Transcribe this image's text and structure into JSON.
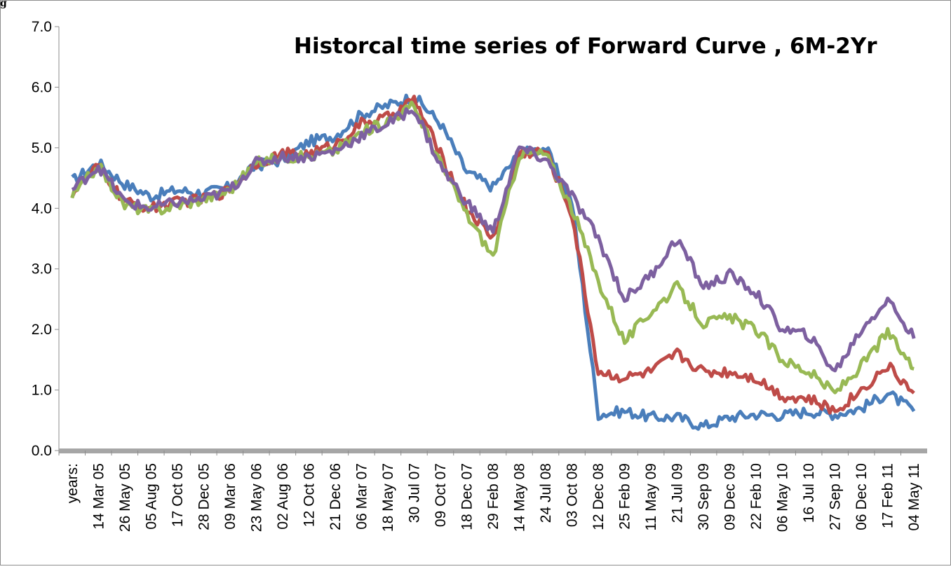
{
  "header_fragment": "g",
  "chart_data": {
    "type": "line",
    "title": "Historcal time series of Forward Curve , 6M-2Yr",
    "xlabel": "",
    "ylabel": "",
    "ylim": [
      0,
      7
    ],
    "yticks": [
      "0.0",
      "1.0",
      "2.0",
      "3.0",
      "4.0",
      "5.0",
      "6.0",
      "7.0"
    ],
    "grid": false,
    "legend": "none",
    "x_tick_labels": [
      "years:",
      "14 Mar 05",
      "26 May 05",
      "05 Aug 05",
      "17 Oct 05",
      "28 Dec 05",
      "09 Mar 06",
      "23 May 06",
      "02 Aug 06",
      "12 Oct 06",
      "21 Dec 06",
      "06 Mar 07",
      "18 May 07",
      "30 Jul 07",
      "09 Oct 07",
      "18 Dec 07",
      "29 Feb 08",
      "14 May 08",
      "24 Jul 08",
      "03 Oct 08",
      "12 Dec 08",
      "25 Feb 09",
      "11 May 09",
      "21 Jul 09",
      "30 Sep 09",
      "09 Dec 09",
      "22 Feb 10",
      "06 May 10",
      "16 Jul 10",
      "27 Sep 10",
      "06 Dec 10",
      "17 Feb 11",
      "04 May 11"
    ],
    "x": [
      "years:",
      "14 Mar 05",
      "26 May 05",
      "05 Aug 05",
      "17 Oct 05",
      "28 Dec 05",
      "09 Mar 06",
      "23 May 06",
      "02 Aug 06",
      "12 Oct 06",
      "21 Dec 06",
      "06 Mar 07",
      "18 May 07",
      "30 Jul 07",
      "09 Oct 07",
      "18 Dec 07",
      "29 Feb 08",
      "14 May 08",
      "24 Jul 08",
      "03 Oct 08",
      "12 Dec 08",
      "25 Feb 09",
      "11 May 09",
      "21 Jul 09",
      "30 Sep 09",
      "09 Dec 09",
      "22 Feb 10",
      "06 May 10",
      "16 Jul 10",
      "27 Sep 10",
      "06 Dec 10",
      "17 Feb 11",
      "04 May 11"
    ],
    "series": [
      {
        "color": "#4a7ebb",
        "values": [
          4.45,
          4.75,
          4.4,
          4.2,
          4.3,
          4.25,
          4.35,
          4.7,
          4.8,
          5.1,
          5.2,
          5.55,
          5.7,
          5.85,
          5.4,
          4.6,
          4.35,
          4.9,
          5.0,
          4.1,
          0.6,
          0.65,
          0.55,
          0.55,
          0.4,
          0.55,
          0.6,
          0.58,
          0.65,
          0.6,
          0.7,
          0.95,
          0.65
        ]
      },
      {
        "color": "#be4b48",
        "values": [
          4.25,
          4.7,
          4.1,
          4.0,
          4.1,
          4.15,
          4.3,
          4.75,
          4.9,
          4.9,
          5.05,
          5.4,
          5.5,
          5.8,
          4.9,
          4.0,
          3.5,
          4.9,
          4.95,
          3.9,
          1.3,
          1.2,
          1.3,
          1.6,
          1.3,
          1.3,
          1.2,
          0.9,
          0.85,
          0.65,
          1.0,
          1.4,
          0.95
        ]
      },
      {
        "color": "#98b954",
        "values": [
          4.2,
          4.7,
          4.05,
          3.95,
          4.05,
          4.15,
          4.3,
          4.75,
          4.85,
          4.85,
          4.95,
          5.25,
          5.45,
          5.7,
          4.75,
          3.9,
          3.2,
          4.9,
          4.9,
          4.0,
          2.8,
          1.8,
          2.3,
          2.7,
          2.1,
          2.2,
          2.0,
          1.5,
          1.3,
          0.95,
          1.4,
          1.95,
          1.35
        ]
      },
      {
        "color": "#7d60a0",
        "values": [
          4.3,
          4.7,
          4.1,
          4.0,
          4.1,
          4.15,
          4.3,
          4.75,
          4.85,
          4.85,
          4.95,
          5.2,
          5.4,
          5.65,
          4.7,
          4.1,
          3.6,
          5.0,
          4.8,
          4.2,
          3.5,
          2.5,
          2.9,
          3.5,
          2.7,
          2.9,
          2.6,
          2.0,
          1.9,
          1.3,
          2.0,
          2.5,
          1.85
        ]
      }
    ]
  }
}
